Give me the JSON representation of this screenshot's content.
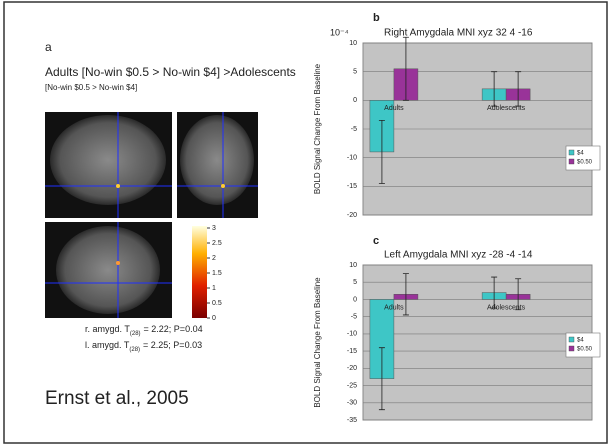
{
  "panel_a": {
    "label": "a",
    "heading": "Adults [No-win $0.5 > No-win $4] >Adolescents",
    "subheading": "[No-win $0.5 > No-win $4]",
    "colorbar": {
      "lim": [
        0,
        3
      ],
      "ticks": [
        0,
        0.5,
        1,
        1.5,
        2,
        2.5,
        3
      ]
    },
    "stats": [
      {
        "prefix": "r. amygd. T",
        "sub": "(28)",
        "suffix": "= 2.22; P=0.04"
      },
      {
        "prefix": "l. amygd. T",
        "sub": "(28)",
        "suffix": "= 2.25; P=0.03"
      }
    ],
    "citation": "Ernst et al., 2005"
  },
  "chart_data": [
    {
      "type": "bar",
      "label": "b",
      "title": "Right Amygdala MNI xyz 32 4 -16",
      "y_unit": "10⁻⁴",
      "ylabel": "BOLD Signal Change From Baseline",
      "categories": [
        "Adults",
        "Adolescents"
      ],
      "series": [
        {
          "name": "$4",
          "color": "#3ec6c6",
          "values": [
            -9,
            2
          ],
          "errors": [
            5.5,
            3
          ]
        },
        {
          "name": "$0.50",
          "color": "#993399",
          "values": [
            5.5,
            2
          ],
          "errors": [
            5.5,
            3
          ]
        }
      ],
      "ylim": [
        -20,
        10
      ],
      "yticks": [
        -20,
        -15,
        -10,
        -5,
        0,
        5,
        10
      ],
      "grid": true
    },
    {
      "type": "bar",
      "label": "c",
      "title": "Left Amygdala MNI xyz -28 -4 -14",
      "ylabel": "BOLD Signal Change From Baseline",
      "categories": [
        "Adults",
        "Adolescents"
      ],
      "series": [
        {
          "name": "$4",
          "color": "#3ec6c6",
          "values": [
            -23,
            2
          ],
          "errors": [
            9,
            4.5
          ]
        },
        {
          "name": "$0.50",
          "color": "#993399",
          "values": [
            1.5,
            1.5
          ],
          "errors": [
            6,
            4.5
          ]
        }
      ],
      "ylim": [
        -35,
        10
      ],
      "yticks": [
        -35,
        -30,
        -25,
        -20,
        -15,
        -10,
        -5,
        0,
        5,
        10
      ],
      "grid": true
    }
  ]
}
